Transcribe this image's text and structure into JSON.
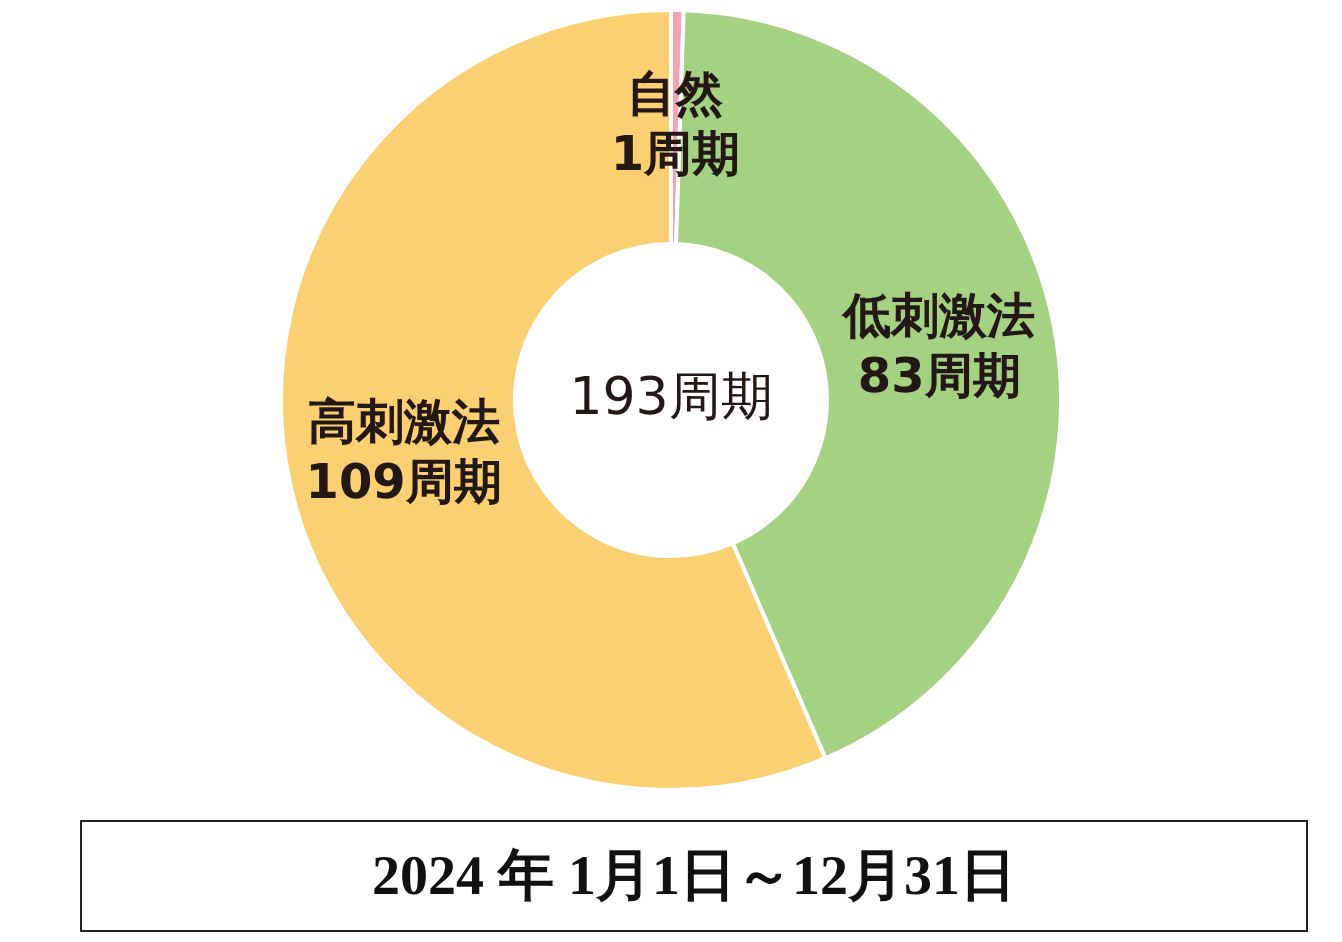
{
  "chart_data": {
    "type": "donut",
    "categories": [
      "自然",
      "低刺激法",
      "高刺激法"
    ],
    "values": [
      1,
      83,
      109
    ],
    "colors": [
      "#f2a5b0",
      "#a5d183",
      "#fbd073"
    ],
    "value_labels": [
      "1周期",
      "83周期",
      "109周期"
    ],
    "annotations": [
      "193周期",
      "2024 年 1月1日～12月31日"
    ]
  }
}
